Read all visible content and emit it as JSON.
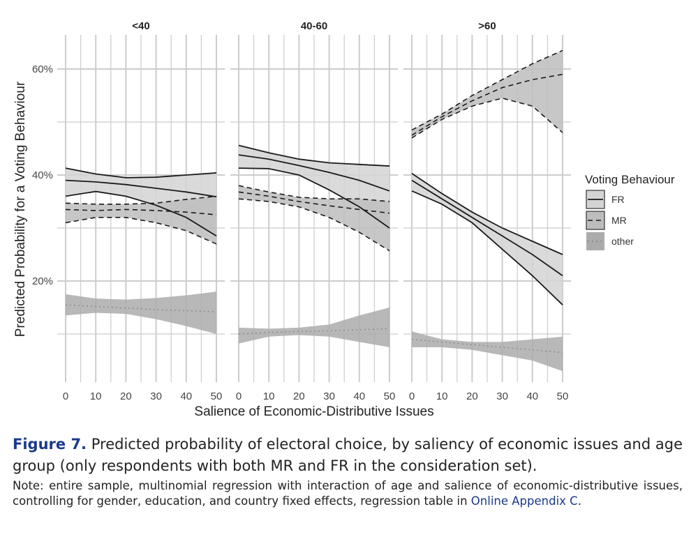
{
  "chart_data": {
    "type": "line",
    "ylabel": "Predicted Probability for a Voting Behaviour",
    "xlabel": "Salience of Economic-Distributive Issues",
    "ylim": [
      0,
      65
    ],
    "xlim": [
      0,
      50
    ],
    "x_ticks": [
      0,
      10,
      20,
      30,
      40,
      50
    ],
    "y_ticks": [
      20,
      40,
      60
    ],
    "y_tick_labels": [
      "20%",
      "40%",
      "60%"
    ],
    "grid": true,
    "legend": {
      "title": "Voting Behaviour",
      "placement": "right",
      "entries": [
        {
          "name": "FR",
          "style": "solid"
        },
        {
          "name": "MR",
          "style": "dashed"
        },
        {
          "name": "other",
          "style": "dotted"
        }
      ]
    },
    "x": [
      0,
      10,
      20,
      30,
      40,
      50
    ],
    "panels": [
      {
        "title": "<40",
        "series": [
          {
            "name": "FR",
            "mean": [
              39.0,
              38.7,
              38.2,
              37.5,
              36.8,
              35.9
            ],
            "lower": [
              36.0,
              36.9,
              36.0,
              34.3,
              32.0,
              28.5
            ],
            "upper": [
              41.3,
              40.2,
              39.5,
              39.6,
              40.0,
              40.4
            ]
          },
          {
            "name": "MR",
            "mean": [
              33.5,
              33.3,
              33.5,
              33.3,
              33.0,
              32.5
            ],
            "lower": [
              31.0,
              32.0,
              32.0,
              31.0,
              29.5,
              27.0
            ],
            "upper": [
              34.7,
              34.5,
              34.5,
              34.7,
              35.4,
              36.0
            ]
          },
          {
            "name": "other",
            "mean": [
              15.5,
              15.2,
              14.9,
              14.6,
              14.4,
              14.2
            ],
            "lower": [
              13.5,
              14.0,
              13.8,
              12.8,
              11.5,
              10.0
            ],
            "upper": [
              17.5,
              16.7,
              16.5,
              16.8,
              17.3,
              18.0
            ]
          }
        ]
      },
      {
        "title": "40-60",
        "series": [
          {
            "name": "FR",
            "mean": [
              43.8,
              43.0,
              41.8,
              40.5,
              39.0,
              37.0
            ],
            "lower": [
              41.3,
              41.2,
              40.0,
              37.2,
              34.0,
              30.0
            ],
            "upper": [
              45.6,
              44.2,
              43.0,
              42.3,
              42.0,
              41.7
            ]
          },
          {
            "name": "MR",
            "mean": [
              36.8,
              36.0,
              35.0,
              34.2,
              33.5,
              32.8
            ],
            "lower": [
              35.5,
              35.0,
              34.0,
              32.0,
              29.2,
              25.7
            ],
            "upper": [
              38.0,
              36.8,
              35.8,
              35.5,
              35.5,
              35.0
            ]
          },
          {
            "name": "other",
            "mean": [
              10.0,
              10.3,
              10.5,
              10.6,
              10.8,
              11.0
            ],
            "lower": [
              8.2,
              9.5,
              9.8,
              9.5,
              8.5,
              7.5
            ],
            "upper": [
              11.2,
              11.0,
              11.2,
              11.8,
              13.5,
              15.0
            ]
          }
        ]
      },
      {
        "title": ">60",
        "series": [
          {
            "name": "FR",
            "mean": [
              39.0,
              35.5,
              32.0,
              28.5,
              25.0,
              21.0
            ],
            "lower": [
              37.0,
              34.5,
              31.0,
              26.0,
              21.0,
              15.5
            ],
            "upper": [
              40.3,
              36.5,
              33.0,
              30.0,
              27.5,
              25.0
            ]
          },
          {
            "name": "MR",
            "mean": [
              47.5,
              51.0,
              54.0,
              56.5,
              58.0,
              59.0
            ],
            "lower": [
              47.0,
              50.5,
              53.0,
              54.5,
              53.0,
              48.0
            ],
            "upper": [
              48.5,
              51.5,
              55.0,
              58.0,
              61.0,
              63.5
            ]
          },
          {
            "name": "other",
            "mean": [
              9.0,
              8.5,
              8.0,
              7.5,
              7.0,
              6.5
            ],
            "lower": [
              7.5,
              7.5,
              7.0,
              6.0,
              5.0,
              3.0
            ],
            "upper": [
              10.5,
              9.0,
              8.5,
              8.5,
              9.0,
              9.5
            ]
          }
        ]
      }
    ]
  },
  "caption": {
    "label": "Figure 7.",
    "text": "Predicted probability of electoral choice, by saliency of economic issues and age group (only respondents with both MR and FR in the consideration set).",
    "note": "Note: entire sample, multinomial regression with interaction of age and salience of economic-distributive issues, controlling for gender, education, and country fixed effects, regression table in",
    "link": "Online Appendix C",
    "tail": "."
  },
  "colors": {
    "panel_bg": "#ffffff",
    "grid": "#cccccc",
    "band_fr": "#d4d4d4",
    "band_mr": "#bdbdbd",
    "band_other": "#ababab",
    "line": "#1a1a1a",
    "caption_accent": "#1a3a8c"
  }
}
